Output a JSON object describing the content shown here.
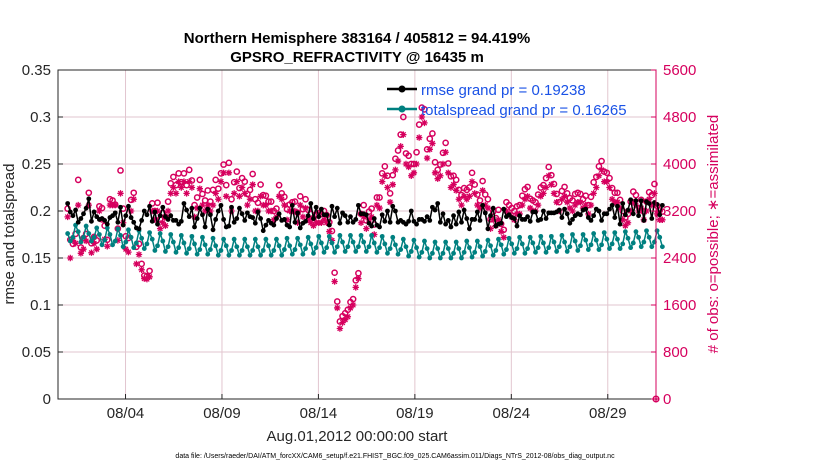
{
  "chart_data": {
    "type": "line",
    "title_line1": "Northern Hemisphere 383164 / 405812 = 94.419%",
    "title_line2": "GPSRO_REFRACTIVITY @ 16435 m",
    "xlabel": "Aug.01,2012 00:00:00 start",
    "ylabel_left": "rmse and totalspread",
    "ylabel_right": "# of obs: o=possible; ∗=assimilated",
    "footer": "data file: /Users/raeder/DAI/ATM_forcXX/CAM6_setup/f.e21.FHIST_BGC.f09_025.CAM6assim.011/Diags_NTrS_2012-08/obs_diag_output.nc",
    "xlim_days": [
      0.5,
      31.5
    ],
    "ylim_left": [
      0,
      0.35
    ],
    "ylim_right": [
      0,
      5600
    ],
    "x_ticks": [
      {
        "day": 4,
        "label": "08/04"
      },
      {
        "day": 9,
        "label": "08/09"
      },
      {
        "day": 14,
        "label": "08/14"
      },
      {
        "day": 19,
        "label": "08/19"
      },
      {
        "day": 24,
        "label": "08/24"
      },
      {
        "day": 29,
        "label": "08/29"
      }
    ],
    "y_left_ticks": [
      {
        "v": 0,
        "label": "0"
      },
      {
        "v": 0.05,
        "label": "0.05"
      },
      {
        "v": 0.1,
        "label": "0.1"
      },
      {
        "v": 0.15,
        "label": "0.15"
      },
      {
        "v": 0.2,
        "label": "0.2"
      },
      {
        "v": 0.25,
        "label": "0.25"
      },
      {
        "v": 0.3,
        "label": "0.3"
      },
      {
        "v": 0.35,
        "label": "0.35"
      }
    ],
    "y_right_ticks": [
      {
        "v": 0,
        "label": "0"
      },
      {
        "v": 800,
        "label": "800"
      },
      {
        "v": 1600,
        "label": "1600"
      },
      {
        "v": 2400,
        "label": "2400"
      },
      {
        "v": 3200,
        "label": "3200"
      },
      {
        "v": 4000,
        "label": "4000"
      },
      {
        "v": 4800,
        "label": "4800"
      },
      {
        "v": 5600,
        "label": "5600"
      }
    ],
    "legend": [
      {
        "label": "rmse grand pr = 0.19238",
        "color": "#000000"
      },
      {
        "label": "totalspread grand pr = 0.16265",
        "color": "#008080"
      }
    ],
    "series": [
      {
        "name": "rmse",
        "axis": "left",
        "color": "#000000",
        "values": [
          0.208,
          0.199,
          0.195,
          0.201,
          0.188,
          0.192,
          0.197,
          0.203,
          0.213,
          0.189,
          0.199,
          0.194,
          0.191,
          0.192,
          0.19,
          0.186,
          0.193,
          0.195,
          0.198,
          0.188,
          0.204,
          0.185,
          0.195,
          0.205,
          0.193,
          0.188,
          0.182,
          0.181,
          0.19,
          0.2,
          0.196,
          0.205,
          0.189,
          0.199,
          0.186,
          0.195,
          0.204,
          0.194,
          0.191,
          0.195,
          0.19,
          0.19,
          0.186,
          0.189,
          0.208,
          0.201,
          0.194,
          0.203,
          0.183,
          0.192,
          0.203,
          0.196,
          0.183,
          0.202,
          0.196,
          0.18,
          0.191,
          0.2,
          0.206,
          0.191,
          0.183,
          0.184,
          0.204,
          0.188,
          0.192,
          0.203,
          0.197,
          0.19,
          0.198,
          0.194,
          0.193,
          0.187,
          0.199,
          0.192,
          0.179,
          0.185,
          0.19,
          0.187,
          0.185,
          0.192,
          0.197,
          0.19,
          0.191,
          0.185,
          0.183,
          0.206,
          0.188,
          0.198,
          0.182,
          0.187,
          0.189,
          0.195,
          0.208,
          0.192,
          0.204,
          0.194,
          0.202,
          0.196,
          0.196,
          0.185,
          0.205,
          0.194,
          0.203,
          0.187,
          0.198,
          0.195,
          0.188,
          0.194,
          0.188,
          0.191,
          0.206,
          0.197,
          0.197,
          0.196,
          0.187,
          0.184,
          0.192,
          0.185,
          0.183,
          0.196,
          0.189,
          0.2,
          0.188,
          0.205,
          0.2,
          0.188,
          0.19,
          0.188,
          0.186,
          0.189,
          0.2,
          0.189,
          0.186,
          0.191,
          0.191,
          0.189,
          0.194,
          0.19,
          0.204,
          0.201,
          0.208,
          0.188,
          0.197,
          0.186,
          0.19,
          0.183,
          0.195,
          0.186,
          0.199,
          0.188,
          0.201,
          0.192,
          0.181,
          0.191,
          0.191,
          0.199,
          0.19,
          0.206,
          0.198,
          0.181,
          0.195,
          0.203,
          0.184,
          0.186,
          0.187,
          0.202,
          0.194,
          0.196,
          0.193,
          0.192,
          0.184,
          0.195,
          0.191,
          0.191,
          0.194,
          0.189,
          0.199,
          0.199,
          0.19,
          0.191,
          0.2,
          0.192,
          0.198,
          0.198,
          0.198,
          0.199,
          0.201,
          0.193,
          0.202,
          0.197,
          0.187,
          0.191,
          0.195,
          0.197,
          0.196,
          0.201,
          0.202,
          0.193,
          0.19,
          0.195,
          0.202,
          0.2,
          0.19,
          0.197,
          0.197,
          0.202,
          0.206,
          0.193,
          0.205,
          0.186,
          0.208,
          0.196,
          0.201,
          0.212,
          0.197,
          0.211,
          0.195,
          0.211,
          0.19,
          0.21,
          0.208,
          0.192,
          0.209,
          0.207,
          0.196,
          0.206
        ]
      },
      {
        "name": "totalspread",
        "axis": "left",
        "color": "#008080",
        "values": [
          0.176,
          0.168,
          0.172,
          0.185,
          0.178,
          0.167,
          0.172,
          0.184,
          0.176,
          0.168,
          0.172,
          0.182,
          0.175,
          0.164,
          0.169,
          0.182,
          0.175,
          0.164,
          0.168,
          0.181,
          0.174,
          0.162,
          0.167,
          0.18,
          0.172,
          0.161,
          0.166,
          0.179,
          0.171,
          0.16,
          0.165,
          0.177,
          0.17,
          0.158,
          0.163,
          0.176,
          0.168,
          0.157,
          0.162,
          0.175,
          0.167,
          0.156,
          0.161,
          0.174,
          0.166,
          0.155,
          0.16,
          0.173,
          0.165,
          0.154,
          0.159,
          0.172,
          0.164,
          0.154,
          0.159,
          0.171,
          0.163,
          0.153,
          0.158,
          0.17,
          0.163,
          0.153,
          0.158,
          0.17,
          0.162,
          0.153,
          0.158,
          0.17,
          0.162,
          0.153,
          0.158,
          0.17,
          0.162,
          0.153,
          0.158,
          0.17,
          0.163,
          0.153,
          0.158,
          0.17,
          0.163,
          0.153,
          0.159,
          0.171,
          0.163,
          0.154,
          0.159,
          0.171,
          0.164,
          0.154,
          0.16,
          0.172,
          0.165,
          0.155,
          0.161,
          0.173,
          0.166,
          0.156,
          0.161,
          0.173,
          0.166,
          0.156,
          0.162,
          0.174,
          0.167,
          0.157,
          0.162,
          0.174,
          0.167,
          0.157,
          0.162,
          0.174,
          0.167,
          0.157,
          0.162,
          0.174,
          0.166,
          0.156,
          0.161,
          0.173,
          0.165,
          0.155,
          0.16,
          0.172,
          0.164,
          0.154,
          0.159,
          0.17,
          0.162,
          0.152,
          0.157,
          0.169,
          0.161,
          0.151,
          0.156,
          0.168,
          0.16,
          0.15,
          0.155,
          0.167,
          0.16,
          0.15,
          0.155,
          0.167,
          0.16,
          0.15,
          0.155,
          0.167,
          0.16,
          0.15,
          0.156,
          0.168,
          0.161,
          0.151,
          0.156,
          0.168,
          0.162,
          0.152,
          0.157,
          0.169,
          0.163,
          0.153,
          0.158,
          0.17,
          0.164,
          0.154,
          0.159,
          0.171,
          0.165,
          0.155,
          0.16,
          0.172,
          0.165,
          0.155,
          0.16,
          0.172,
          0.166,
          0.156,
          0.161,
          0.173,
          0.166,
          0.156,
          0.161,
          0.173,
          0.167,
          0.157,
          0.162,
          0.174,
          0.167,
          0.157,
          0.162,
          0.175,
          0.168,
          0.158,
          0.163,
          0.175,
          0.169,
          0.159,
          0.164,
          0.176,
          0.169,
          0.159,
          0.164,
          0.177,
          0.17,
          0.16,
          0.165,
          0.177,
          0.17,
          0.16,
          0.165,
          0.178,
          0.171,
          0.161,
          0.166,
          0.178,
          0.172,
          0.162,
          0.167,
          0.179,
          0.172,
          0.162,
          0.167,
          0.179,
          0.172,
          0.162
        ]
      },
      {
        "name": "obs possible",
        "axis": "right",
        "marker": "o",
        "color": "#d6005e",
        "values": [
          3240,
          2710,
          2640,
          2810,
          3730,
          2580,
          2740,
          2810,
          3510,
          2650,
          2760,
          2700,
          3280,
          3250,
          2950,
          2710,
          3400,
          3380,
          3310,
          2900,
          3890,
          3240,
          2770,
          2740,
          3390,
          3510,
          2590,
          2640,
          2300,
          2100,
          2090,
          2180,
          3330,
          3200,
          3340,
          3060,
          3170,
          3100,
          3360,
          3670,
          3780,
          3640,
          3840,
          3690,
          3840,
          3640,
          3900,
          3720,
          3300,
          3430,
          3730,
          3490,
          3380,
          3550,
          3360,
          3560,
          3730,
          3580,
          3840,
          3990,
          3640,
          4020,
          3400,
          3690,
          3870,
          3590,
          3760,
          3700,
          3490,
          3560,
          3830,
          3400,
          3340,
          3650,
          3470,
          3460,
          3360,
          3360,
          3200,
          3240,
          3640,
          3500,
          3440,
          3230,
          3310,
          3350,
          3360,
          3170,
          3450,
          3230,
          3400,
          3220,
          3150,
          3080,
          3140,
          3160,
          3150,
          3200,
          3130,
          3010,
          2860,
          2150,
          1660,
          1320,
          1410,
          1460,
          1520,
          1650,
          1700,
          2020,
          2140,
          3150,
          3300,
          3040,
          3190,
          3240,
          2970,
          3430,
          3430,
          3840,
          3960,
          3800,
          3500,
          3810,
          4090,
          4230,
          4500,
          4800,
          4180,
          4140,
          4000,
          4000,
          4200,
          4670,
          4960,
          4930,
          4250,
          4430,
          4520,
          4030,
          3900,
          3990,
          4190,
          4360,
          4010,
          3790,
          3800,
          3730,
          3560,
          3470,
          3590,
          3560,
          3600,
          3850,
          3650,
          3480,
          3380,
          3710,
          3480,
          3400,
          3060,
          3190,
          3080,
          3220,
          2980,
          2880,
          3350,
          3300,
          3250,
          3200,
          3280,
          3300,
          3460,
          3570,
          3610,
          3410,
          3380,
          3350,
          3480,
          3600,
          3640,
          3760,
          3950,
          3810,
          3660,
          3490,
          3350,
          3540,
          3610,
          3500,
          3420,
          3380,
          3490,
          3510,
          3490,
          3400,
          3460,
          3300,
          3440,
          3690,
          3780,
          3960,
          4050,
          3870,
          3850,
          3760,
          3590,
          3510,
          3510,
          3390,
          3200,
          3090,
          3150,
          3360,
          3530,
          3470,
          3330,
          3390,
          3190,
          3360,
          3520,
          3470,
          3660,
          3290,
          3210,
          3190
        ]
      },
      {
        "name": "obs assimilated",
        "axis": "right",
        "marker": "*",
        "color": "#d6005e",
        "values": [
          3100,
          2400,
          2700,
          2650,
          3300,
          2480,
          2550,
          2690,
          3300,
          2490,
          2650,
          2550,
          3200,
          3050,
          2720,
          2600,
          3300,
          3300,
          3300,
          2700,
          3500,
          3000,
          2550,
          2500,
          3200,
          3400,
          2300,
          2460,
          2200,
          2050,
          2040,
          2080,
          3200,
          3050,
          3200,
          2900,
          3000,
          2950,
          3200,
          3500,
          3600,
          3500,
          3700,
          3600,
          3700,
          3500,
          3700,
          3600,
          3100,
          3250,
          3580,
          3300,
          3200,
          3300,
          3200,
          3300,
          3500,
          3400,
          3700,
          3850,
          3450,
          3850,
          3200,
          3500,
          3700,
          3450,
          3600,
          3500,
          3300,
          3400,
          3650,
          3200,
          3200,
          3450,
          3300,
          3300,
          3200,
          3200,
          3050,
          3100,
          3450,
          3400,
          3300,
          3050,
          3200,
          3200,
          3200,
          3000,
          3300,
          3100,
          3250,
          3050,
          3000,
          2950,
          3000,
          3000,
          3000,
          3050,
          3000,
          2850,
          2700,
          2000,
          1550,
          1200,
          1300,
          1350,
          1400,
          1550,
          1600,
          1900,
          2050,
          3000,
          3100,
          2900,
          3050,
          3100,
          2800,
          3300,
          3250,
          3700,
          3800,
          3600,
          3350,
          3650,
          3900,
          4050,
          4300,
          4500,
          4000,
          3950,
          3800,
          3850,
          4000,
          4450,
          4800,
          4700,
          4100,
          4250,
          4350,
          3850,
          3750,
          3800,
          4000,
          4200,
          3850,
          3600,
          3650,
          3550,
          3400,
          3300,
          3450,
          3400,
          3450,
          3700,
          3500,
          3300,
          3250,
          3550,
          3300,
          3250,
          2900,
          3050,
          2950,
          3050,
          2850,
          2750,
          3200,
          3150,
          3100,
          3050,
          3150,
          3150,
          3300,
          3400,
          3450,
          3250,
          3200,
          3200,
          3300,
          3450,
          3500,
          3600,
          3800,
          3650,
          3500,
          3350,
          3200,
          3400,
          3450,
          3350,
          3250,
          3200,
          3300,
          3350,
          3350,
          3250,
          3300,
          3150,
          3300,
          3500,
          3600,
          3800,
          3900,
          3700,
          3700,
          3600,
          3400,
          3350,
          3350,
          3250,
          3050,
          2950,
          3000,
          3200,
          3350,
          3300,
          3200,
          3250,
          3050,
          3200,
          3400,
          3300,
          3500,
          3150,
          3050,
          3050
        ]
      }
    ]
  }
}
